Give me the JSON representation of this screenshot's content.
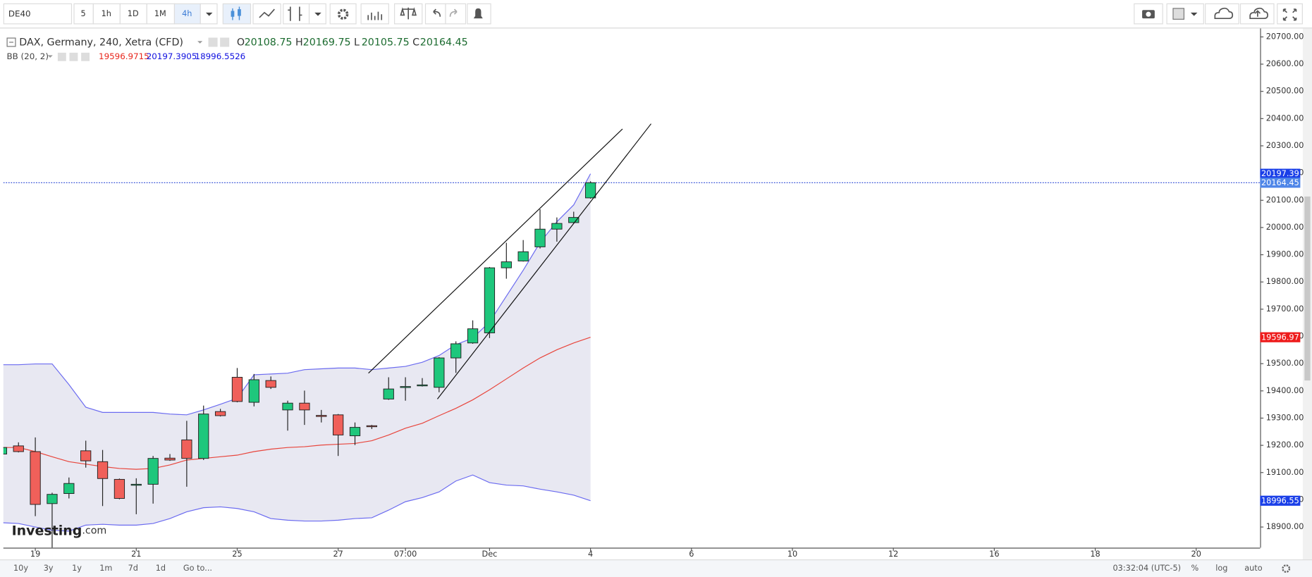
{
  "toolbar": {
    "symbol": "DE40",
    "intervals": [
      "5",
      "1h",
      "1D",
      "1M",
      "4h"
    ],
    "active_interval": 4
  },
  "bottom_bar": {
    "ranges": [
      "10y",
      "3y",
      "1y",
      "1m",
      "7d",
      "1d"
    ],
    "goto": "Go to...",
    "clock": "03:32:04 (UTC-5)",
    "scale_options": [
      "%",
      "log",
      "auto"
    ]
  },
  "watermark": [
    "Investing",
    ".com"
  ],
  "chart_data": {
    "type": "candlestick",
    "title": "DAX, Germany, 240, Xetra (CFD)",
    "ohlc_prefixes": [
      "O",
      "H",
      "L",
      "C"
    ],
    "up_color": "#1ec77c",
    "down_color": "#f0605a",
    "open": [
      19168,
      19198,
      19177,
      18986,
      19023,
      19180,
      19140,
      19075,
      19055,
      19057,
      19153,
      19220,
      19152,
      19324,
      19450,
      19358,
      19438,
      19330,
      19355,
      19310,
      19312,
      19235,
      19272,
      19370,
      19414,
      19420,
      19413,
      19521,
      19576,
      19613,
      19852,
      19877,
      19929,
      19994,
      20018,
      20108.75
    ],
    "high": [
      19195,
      19211,
      19229,
      19026,
      19082,
      19217,
      19183,
      19078,
      19079,
      19161,
      19168,
      19290,
      19346,
      19334,
      19484,
      19462,
      19453,
      19364,
      19401,
      19330,
      19315,
      19284,
      19275,
      19450,
      19450,
      19447,
      19524,
      19582,
      19659,
      19855,
      19944,
      19954,
      20067,
      20037,
      20058,
      20169.75
    ],
    "low": [
      19165,
      19174,
      18940,
      18824,
      19005,
      19118,
      18977,
      19002,
      18947,
      18986,
      19143,
      19048,
      19146,
      19306,
      19358,
      19343,
      19407,
      19254,
      19275,
      19284,
      19161,
      19201,
      19260,
      19367,
      19364,
      19416,
      19395,
      19466,
      19573,
      19594,
      19812,
      19875,
      19923,
      19948,
      20015,
      20105.75
    ],
    "close": [
      19192,
      19177,
      18983,
      19020,
      19060,
      19143,
      19078,
      19005,
      19057,
      19152,
      19146,
      19152,
      19315,
      19309,
      19361,
      19441,
      19413,
      19355,
      19330,
      19306,
      19238,
      19266,
      19269,
      19407,
      19416,
      19422,
      19521,
      19573,
      19628,
      19852,
      19874,
      19911,
      19994,
      20015,
      20037,
      20164.45
    ],
    "indicator": {
      "name": "BB (20, 2)",
      "values": [
        19596.9715,
        20197.3905,
        18996.5526
      ],
      "colors": [
        "#e8261c",
        "#1010e0",
        "#1010e0"
      ]
    },
    "bands": {
      "middle": [
        19192,
        19192,
        19177,
        19158,
        19140,
        19131,
        19122,
        19115,
        19112,
        19115,
        19128,
        19146,
        19152,
        19158,
        19164,
        19177,
        19186,
        19192,
        19195,
        19201,
        19204,
        19207,
        19217,
        19238,
        19263,
        19281,
        19309,
        19336,
        19367,
        19404,
        19444,
        19484,
        19521,
        19551,
        19576,
        19596.9715
      ],
      "upper": [
        19496,
        19496,
        19499,
        19499,
        19423,
        19340,
        19321,
        19321,
        19321,
        19321,
        19315,
        19312,
        19330,
        19351,
        19373,
        19459,
        19462,
        19465,
        19478,
        19481,
        19484,
        19484,
        19478,
        19484,
        19490,
        19505,
        19530,
        19570,
        19594,
        19653,
        19748,
        19843,
        19945,
        20021,
        20083,
        20197.3905
      ],
      "lower": [
        18916,
        18913,
        18900,
        18888,
        18885,
        18907,
        18910,
        18907,
        18907,
        18913,
        18931,
        18956,
        18971,
        18974,
        18968,
        18956,
        18931,
        18925,
        18922,
        18922,
        18925,
        18931,
        18934,
        18962,
        18993,
        19008,
        19029,
        19069,
        19091,
        19063,
        19054,
        19051,
        19039,
        19029,
        19017,
        18996.5526
      ],
      "middle_color": "#e8453c",
      "band_color": "#6b6bf0",
      "fill_color": "#e4e4f0"
    },
    "trendlines": [
      {
        "x": [
          21.8,
          36.9
        ],
        "y": [
          19465,
          20362
        ]
      },
      {
        "x": [
          25.9,
          38.6
        ],
        "y": [
          19370,
          20381
        ]
      }
    ],
    "trendline_color": "#111111",
    "price_labels": [
      {
        "value": 20197.3905,
        "label": "20197.39",
        "color": "#1a3fe8"
      },
      {
        "value": 20164.45,
        "label": "20164.45",
        "color": "#4f86e8"
      },
      {
        "value": 19596.9715,
        "label": "19596.97",
        "color": "#ee1c1c"
      },
      {
        "value": 18996.5526,
        "label": "18996.55",
        "color": "#1a3fe8"
      }
    ],
    "xlim": [
      0.1,
      74.8
    ],
    "ylim": [
      18824,
      20728
    ],
    "xticks": [
      {
        "value": 2,
        "label": "19"
      },
      {
        "value": 8,
        "label": "21"
      },
      {
        "value": 14,
        "label": "25"
      },
      {
        "value": 20,
        "label": "27"
      },
      {
        "value": 24,
        "label": "07:00"
      },
      {
        "value": 29,
        "label": "Dec"
      },
      {
        "value": 35,
        "label": "4"
      },
      {
        "value": 41,
        "label": "6"
      },
      {
        "value": 47,
        "label": "10"
      },
      {
        "value": 53,
        "label": "12"
      },
      {
        "value": 59,
        "label": "16"
      },
      {
        "value": 65,
        "label": "18"
      },
      {
        "value": 71,
        "label": "20"
      }
    ],
    "yticks": [
      {
        "value": 18900,
        "label": "18900.00"
      },
      {
        "value": 19000,
        "label": "19000.00"
      },
      {
        "value": 19100,
        "label": "19100.00"
      },
      {
        "value": 19200,
        "label": "19200.00"
      },
      {
        "value": 19300,
        "label": "19300.00"
      },
      {
        "value": 19400,
        "label": "19400.00"
      },
      {
        "value": 19500,
        "label": "19500.00"
      },
      {
        "value": 19600,
        "label": "19600.00"
      },
      {
        "value": 19700,
        "label": "19700.00"
      },
      {
        "value": 19800,
        "label": "19800.00"
      },
      {
        "value": 19900,
        "label": "19900.00"
      },
      {
        "value": 20000,
        "label": "20000.00"
      },
      {
        "value": 20100,
        "label": "20100.00"
      },
      {
        "value": 20200,
        "label": "20200.00"
      },
      {
        "value": 20300,
        "label": "20300.00"
      },
      {
        "value": 20400,
        "label": "20400.00"
      },
      {
        "value": 20500,
        "label": "20500.00"
      },
      {
        "value": 20600,
        "label": "20600.00"
      },
      {
        "value": 20700,
        "label": "20700.00"
      }
    ],
    "grid": false
  }
}
